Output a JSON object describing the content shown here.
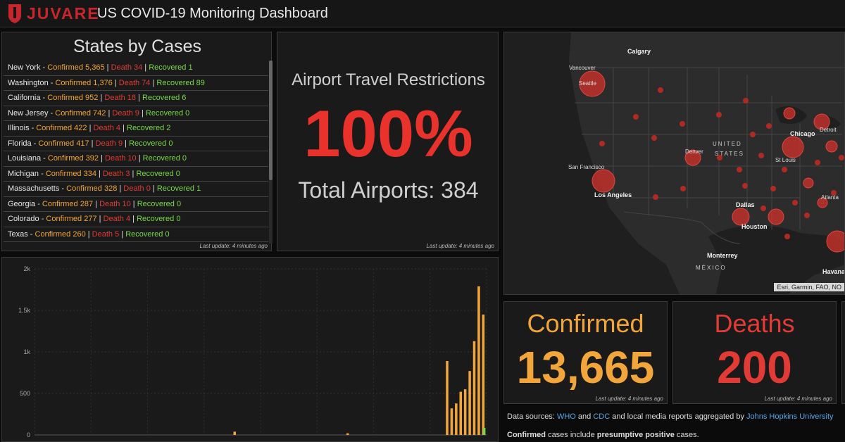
{
  "header": {
    "logo_text": "JUVARE",
    "title": "US COVID-19 Monitoring Dashboard"
  },
  "states_panel": {
    "title": "States by Cases",
    "last_update": "Last update: 4 minutes ago",
    "rows": [
      {
        "state": "New York",
        "confirmed": "Confirmed 5,365",
        "death": "Death 34",
        "recovered": "Recovered 1"
      },
      {
        "state": "Washington",
        "confirmed": "Confirmed 1,376",
        "death": "Death 74",
        "recovered": "Recovered 89"
      },
      {
        "state": "California",
        "confirmed": "Confirmed 952",
        "death": "Death 18",
        "recovered": "Recovered 6"
      },
      {
        "state": "New Jersey",
        "confirmed": "Confirmed 742",
        "death": "Death 9",
        "recovered": "Recovered 0"
      },
      {
        "state": "Illinois",
        "confirmed": "Confirmed 422",
        "death": "Death 4",
        "recovered": "Recovered 2"
      },
      {
        "state": "Florida",
        "confirmed": "Confirmed 417",
        "death": "Death 9",
        "recovered": "Recovered 0"
      },
      {
        "state": "Louisiana",
        "confirmed": "Confirmed 392",
        "death": "Death 10",
        "recovered": "Recovered 0"
      },
      {
        "state": "Michigan",
        "confirmed": "Confirmed 334",
        "death": "Death 3",
        "recovered": "Recovered 0"
      },
      {
        "state": "Massachusetts",
        "confirmed": "Confirmed 328",
        "death": "Death 0",
        "recovered": "Recovered 1"
      },
      {
        "state": "Georgia",
        "confirmed": "Confirmed 287",
        "death": "Death 10",
        "recovered": "Recovered 0"
      },
      {
        "state": "Colorado",
        "confirmed": "Confirmed 277",
        "death": "Death 4",
        "recovered": "Recovered 0"
      },
      {
        "state": "Texas",
        "confirmed": "Confirmed 260",
        "death": "Death 5",
        "recovered": "Recovered 0"
      }
    ]
  },
  "airport_panel": {
    "title": "Airport Travel Restrictions",
    "percent": "100%",
    "total": "Total Airports: 384",
    "last_update": "Last update: 4 minutes ago"
  },
  "map": {
    "labels": {
      "calgary": "Calgary",
      "vancouver": "Vancouver",
      "seattle": "Seattle",
      "united": "UNITED",
      "states": "STATES",
      "denver": "Denver",
      "chicago": "Chicago",
      "detroit": "Detroit",
      "st_louis": "St Louis",
      "san_francisco": "San Francisco",
      "los_angeles": "Los Angeles",
      "dallas": "Dallas",
      "houston": "Houston",
      "atlanta": "Atlanta",
      "monterrey": "Monterrey",
      "mexico": "MÉXICO",
      "havana": "Havana"
    },
    "attribution": "Esri, Garmin, FAO, NO"
  },
  "chart_data": {
    "type": "bar",
    "ylim": [
      0,
      2000
    ],
    "yticks": [
      "0",
      "500",
      "1k",
      "1.5k",
      "2k"
    ],
    "series": [
      {
        "values": [
          0,
          0,
          0,
          0,
          0,
          0,
          0,
          0,
          0,
          0,
          0,
          0,
          0,
          0,
          0,
          0,
          0,
          0,
          0,
          0,
          0,
          0,
          0,
          0,
          0,
          0,
          0,
          0,
          0,
          0,
          0,
          0,
          0,
          0,
          0,
          0,
          0,
          0,
          0,
          0,
          0,
          0,
          0,
          0,
          40,
          0,
          0,
          0,
          0,
          0,
          0,
          0,
          0,
          0,
          0,
          0,
          0,
          0,
          0,
          0,
          0,
          0,
          0,
          0,
          0,
          0,
          0,
          0,
          0,
          20,
          0,
          0,
          0,
          0,
          0,
          0,
          0,
          0,
          0,
          0,
          0,
          0,
          0,
          0,
          0,
          0,
          0,
          0,
          0,
          0,
          0,
          890,
          320,
          380,
          520,
          550,
          770,
          1130,
          1790,
          1450
        ]
      },
      {
        "values": [
          0,
          0,
          0,
          0,
          0,
          0,
          0,
          0,
          0,
          0,
          0,
          0,
          0,
          0,
          0,
          0,
          0,
          0,
          0,
          0,
          0,
          0,
          0,
          0,
          0,
          0,
          0,
          0,
          0,
          0,
          0,
          0,
          0,
          0,
          0,
          0,
          0,
          0,
          0,
          0,
          0,
          0,
          0,
          0,
          0,
          0,
          0,
          0,
          0,
          0,
          0,
          0,
          0,
          0,
          0,
          0,
          0,
          0,
          0,
          0,
          0,
          0,
          0,
          0,
          0,
          0,
          0,
          0,
          0,
          0,
          0,
          0,
          0,
          0,
          0,
          0,
          0,
          0,
          0,
          0,
          0,
          0,
          0,
          0,
          0,
          0,
          0,
          0,
          0,
          0,
          0,
          0,
          0,
          0,
          0,
          0,
          0,
          0,
          0,
          85
        ]
      }
    ],
    "colors": [
      "#f2a53a",
      "#79d84a"
    ],
    "grid": true
  },
  "stats": {
    "confirmed_label": "Confirmed",
    "confirmed_value": "13,665",
    "deaths_label": "Deaths",
    "deaths_value": "200",
    "last_update": "Last update: 4 minutes ago"
  },
  "sources": {
    "prefix": "Data sources:",
    "who": "WHO",
    "and": "and",
    "cdc": "CDC",
    "middle": "and local media reports aggregated by",
    "jhu": "Johns Hopkins University",
    "confirmed_word": "Confirmed",
    "confirmed_text": "cases include",
    "presumptive": "presumptive positive",
    "cases_end": "cases."
  },
  "colors": {
    "accent_red": "#e23b35",
    "accent_orange": "#f2a53a",
    "recovered_green": "#79d84a"
  }
}
